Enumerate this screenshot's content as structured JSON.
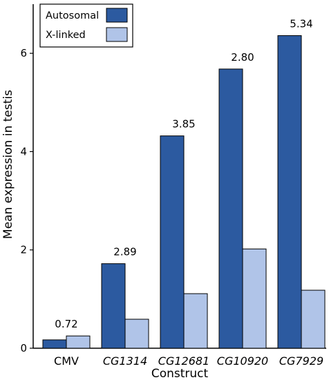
{
  "chart_data": {
    "type": "bar",
    "categories": [
      "CMV",
      "CG1314",
      "CG12681",
      "CG10920",
      "CG7929"
    ],
    "category_italic": [
      false,
      true,
      true,
      true,
      true
    ],
    "series": [
      {
        "name": "Autosomal",
        "values": [
          0.17,
          1.72,
          4.32,
          5.68,
          6.36
        ]
      },
      {
        "name": "X-linked",
        "values": [
          0.25,
          0.59,
          1.11,
          2.02,
          1.18
        ]
      }
    ],
    "data_labels": [
      "0.72",
      "2.89",
      "3.85",
      "2.80",
      "5.34"
    ],
    "xlabel": "Construct",
    "ylabel": "Mean expression in testis",
    "ylim": [
      0,
      7.0
    ],
    "yticks": [
      0,
      2,
      4,
      6
    ],
    "colors": {
      "Autosomal": "#2c5aa0",
      "X-linked": "#b0c4e8",
      "outline": "#000000"
    },
    "legend_position": "top-left",
    "grid": false
  }
}
